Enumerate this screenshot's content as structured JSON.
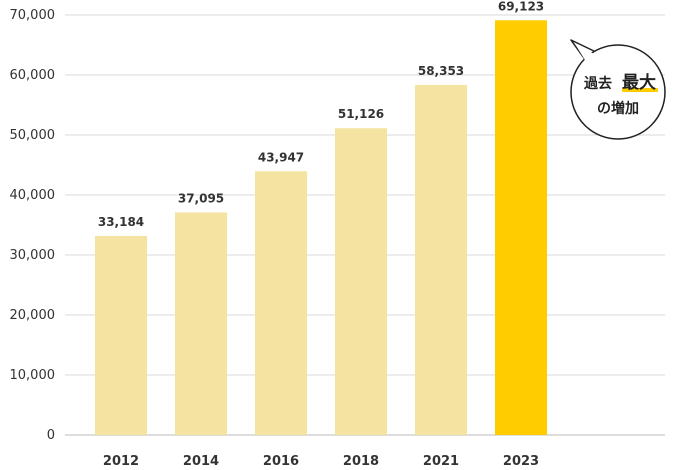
{
  "chart_data": {
    "type": "bar",
    "categories": [
      "2012",
      "2014",
      "2016",
      "2018",
      "2021",
      "2023"
    ],
    "values": [
      33184,
      37095,
      43947,
      51126,
      58353,
      69123
    ],
    "value_labels": [
      "33,184",
      "37,095",
      "43,947",
      "51,126",
      "58,353",
      "69,123"
    ],
    "yticks": [
      0,
      10000,
      20000,
      30000,
      40000,
      50000,
      60000,
      70000
    ],
    "ytick_labels": [
      "0",
      "10,000",
      "20,000",
      "30,000",
      "40,000",
      "50,000",
      "60,000",
      "70,000"
    ],
    "ylim": [
      0,
      70000
    ],
    "grid": true,
    "title": "",
    "xlabel": "",
    "ylabel": "",
    "highlight_index": 5,
    "colors": {
      "bar": "#f4e3a1",
      "highlight": "#ffcc00",
      "grid": "#d9d9d9",
      "axis": "#bbbbbb"
    },
    "annotation": {
      "line1_a": "過去",
      "line1_b": "最大",
      "line2": "の増加",
      "underline_color": "#ffcc00"
    }
  }
}
